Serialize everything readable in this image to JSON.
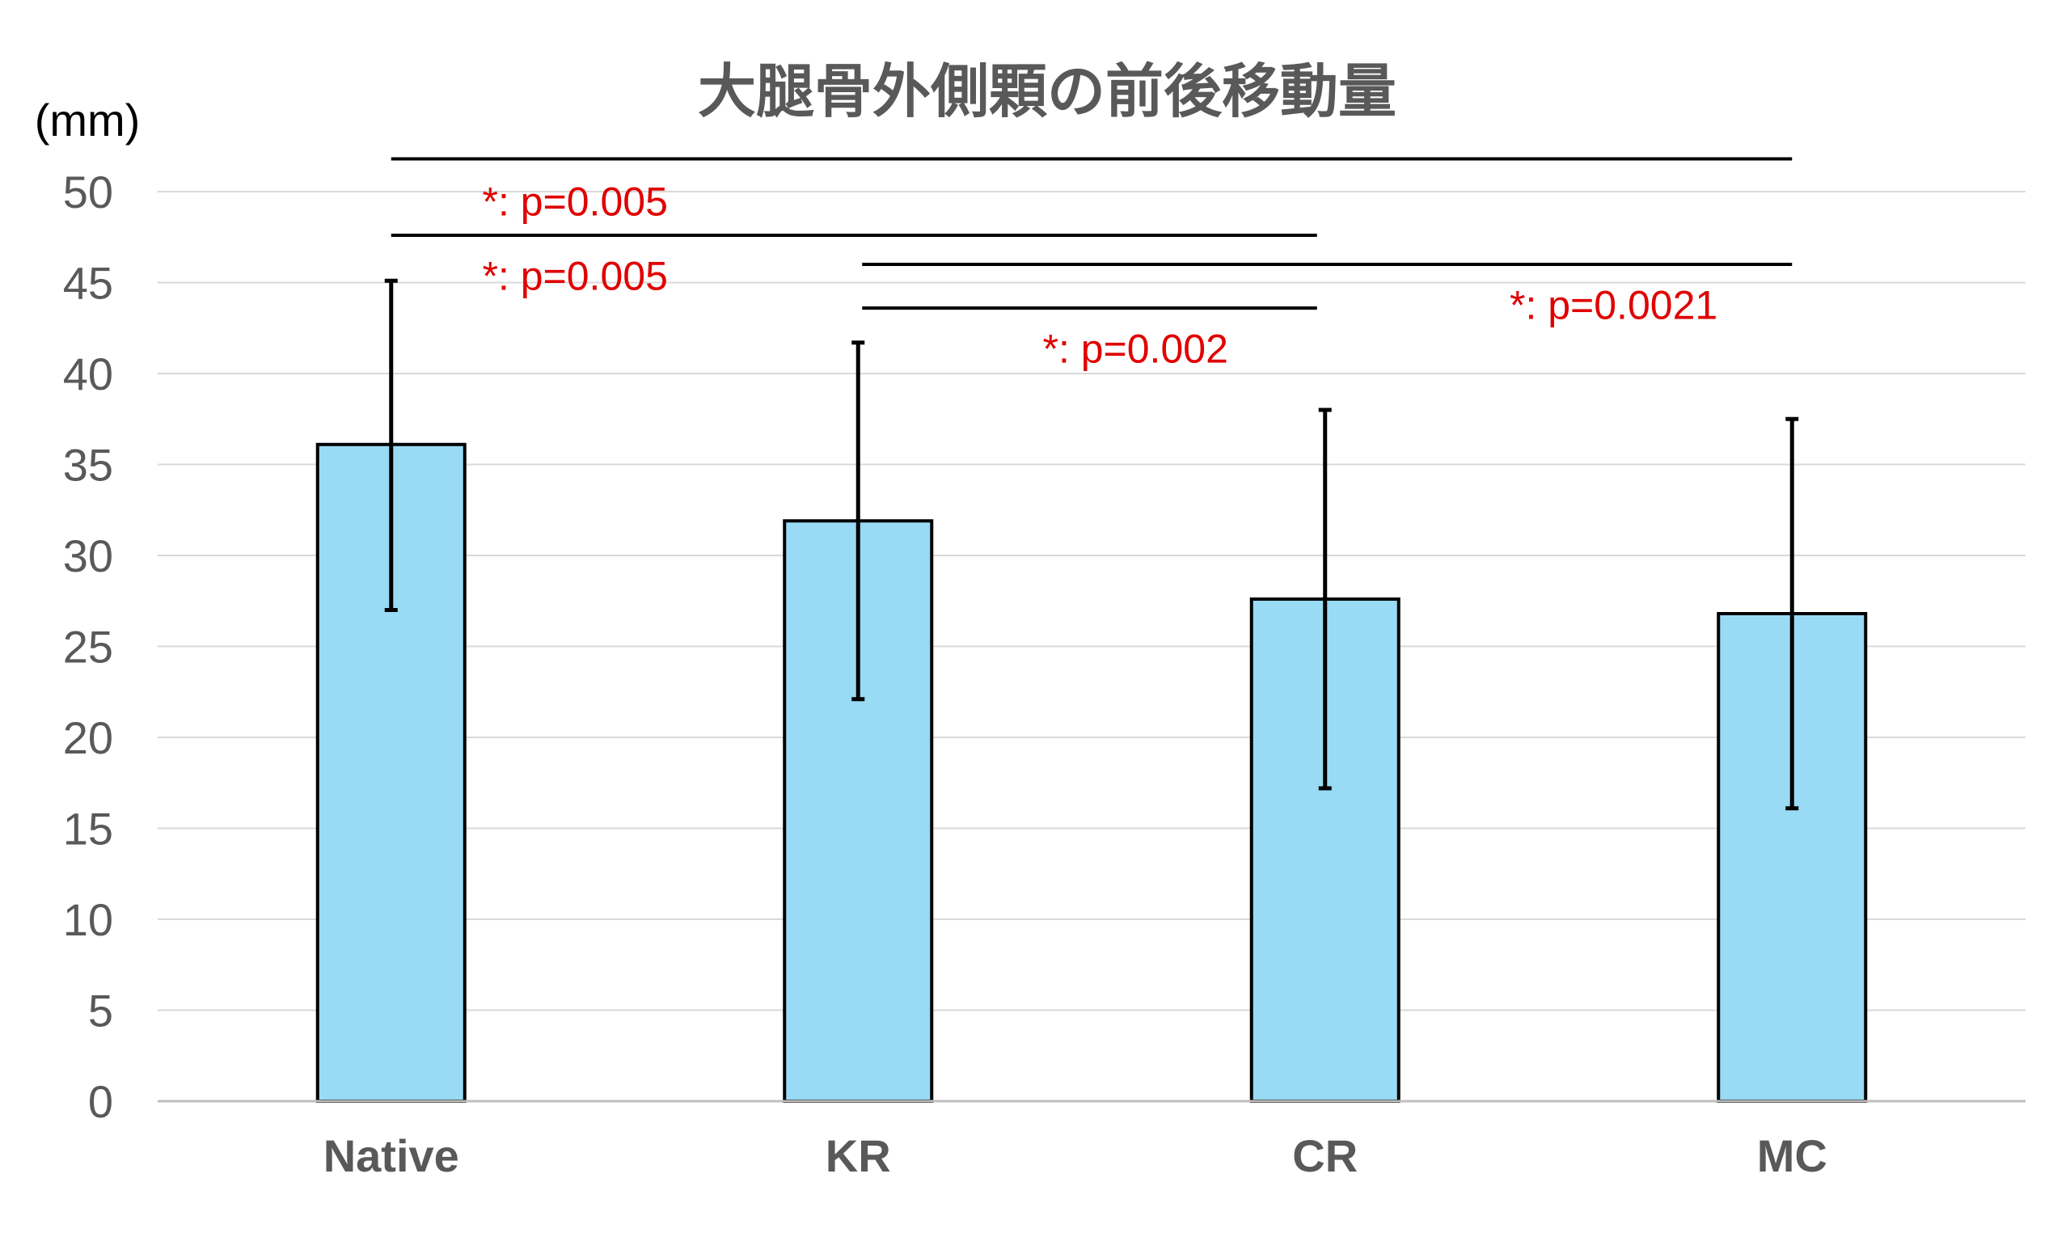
{
  "chart_data": {
    "type": "bar",
    "title": "大腿骨外側顆の前後移動量",
    "ylabel": "(mm)",
    "xlabel": "",
    "ylim": [
      0,
      50
    ],
    "yticks": [
      0,
      5,
      10,
      15,
      20,
      25,
      30,
      35,
      40,
      45,
      50
    ],
    "grid": true,
    "legend": "none",
    "bar_color": "#99dbf5",
    "categories": [
      "Native",
      "KR",
      "CR",
      "MC"
    ],
    "values": [
      36.1,
      31.9,
      27.6,
      26.8
    ],
    "error_bars": [
      {
        "low": 27.0,
        "high": 45.1
      },
      {
        "low": 22.1,
        "high": 41.7
      },
      {
        "low": 17.2,
        "high": 38.0
      },
      {
        "low": 16.1,
        "high": 37.5
      }
    ],
    "significance": [
      {
        "from": "Native",
        "to": "MC",
        "level": 51.8,
        "label": "*: p=0.005",
        "label_y": 49.5,
        "label_x": 0.1
      },
      {
        "from": "Native",
        "to": "CR",
        "level": 47.6,
        "label": "*: p=0.005",
        "label_y": 45.4,
        "label_x": 0.1
      },
      {
        "from": "KR",
        "to": "MC",
        "level": 46.0,
        "label": "*: p=0.0021",
        "label_y": 43.8,
        "label_x": 2.3
      },
      {
        "from": "KR",
        "to": "CR",
        "level": 43.6,
        "label": "*: p=0.002",
        "label_y": 41.4,
        "label_x": 1.3
      }
    ]
  }
}
